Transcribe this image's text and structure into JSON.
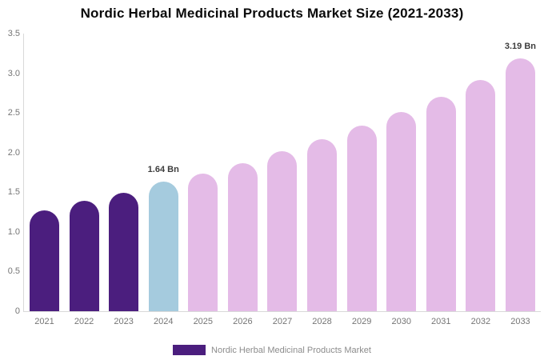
{
  "chart_data": {
    "type": "bar",
    "title": "Nordic Herbal Medicinal Products Market Size (2021-2033)",
    "categories": [
      "2021",
      "2022",
      "2023",
      "2024",
      "2025",
      "2026",
      "2027",
      "2028",
      "2029",
      "2030",
      "2031",
      "2032",
      "2033"
    ],
    "values": [
      1.27,
      1.39,
      1.5,
      1.64,
      1.74,
      1.87,
      2.02,
      2.17,
      2.34,
      2.52,
      2.71,
      2.92,
      3.19
    ],
    "unit": "Bn",
    "xlabel": "",
    "ylabel": "",
    "ylim": [
      0,
      3.5
    ],
    "yticks": [
      "3.5",
      "3.0",
      "2.5",
      "2.0",
      "1.5",
      "1.0",
      "0.5",
      "0"
    ],
    "grid": false,
    "bar_colors": [
      "#4B1E7E",
      "#4B1E7E",
      "#4B1E7E",
      "#A5CBDE",
      "#E4BBE7",
      "#E4BBE7",
      "#E4BBE7",
      "#E4BBE7",
      "#E4BBE7",
      "#E4BBE7",
      "#E4BBE7",
      "#E4BBE7",
      "#E4BBE7"
    ],
    "annotations": [
      {
        "index": 3,
        "label": "1.64 Bn"
      },
      {
        "index": 12,
        "label": "3.19 Bn"
      }
    ],
    "legend": {
      "position": "bottom",
      "label": "Nordic Herbal Medicinal Products Market",
      "swatch_color": "#4B1E7E"
    },
    "colors": {
      "historical_bar": "#4B1E7E",
      "highlight_bar": "#A5CBDE",
      "forecast_bar": "#E4BBE7",
      "axis_line": "#D9D9D9",
      "tick_text": "#757575",
      "annotation_text": "#3D3D3D",
      "legend_text": "#8C8C8C",
      "title_text": "#0A0A0A"
    }
  }
}
